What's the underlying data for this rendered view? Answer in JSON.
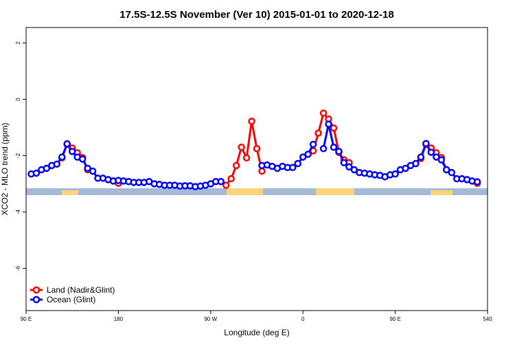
{
  "chart_data": {
    "type": "line",
    "title": "17.5S-12.5S November (Ver 10)   2015-01-01 to 2020-12-18",
    "xlabel": "Longitude (deg E)",
    "ylabel": "XCO2 - MLO trend (ppm)",
    "xlim": [
      90,
      540
    ],
    "xticks": [
      {
        "value": 90,
        "label": "90 E"
      },
      180,
      {
        "value": 270,
        "label": "90 W"
      },
      {
        "value": 360,
        "label": "0"
      },
      {
        "value": 450,
        "label": "90 E"
      },
      540
    ],
    "ylim": [
      -7.5,
      2.55
    ],
    "yticks": [
      -6,
      -4,
      -2,
      0,
      2
    ],
    "legend": "bottom-left",
    "series": [
      {
        "name": "Land (Nadir&Glint)",
        "color": "#ff0000",
        "x": [
          125,
          130,
          135,
          140,
          145,
          150,
          155,
          180,
          185,
          285,
          290,
          295,
          300,
          305,
          310,
          315,
          320,
          325,
          370,
          375,
          380,
          385,
          390,
          395,
          400,
          405,
          410,
          475,
          480,
          485,
          490,
          495,
          500,
          505,
          530
        ],
        "values": [
          -2.08,
          -1.6,
          -1.73,
          -1.9,
          -2.07,
          -2.5,
          null,
          -2.98,
          null,
          -3.05,
          -2.82,
          -2.35,
          -1.7,
          -2.08,
          -0.78,
          -1.75,
          -2.55,
          null,
          -1.83,
          -1.2,
          -0.49,
          -0.7,
          -1.02,
          -1.88,
          -2.15,
          -2.25,
          null,
          -2.1,
          -1.6,
          -1.73,
          -1.9,
          -2.07,
          -2.5,
          null,
          -2.98
        ]
      },
      {
        "name": "Ocean (Glint)",
        "color": "#0000ff",
        "x": [
          95,
          100,
          105,
          110,
          115,
          120,
          125,
          130,
          135,
          140,
          145,
          150,
          155,
          160,
          165,
          170,
          175,
          180,
          185,
          190,
          195,
          200,
          205,
          210,
          215,
          220,
          225,
          230,
          235,
          240,
          245,
          250,
          255,
          260,
          265,
          270,
          275,
          280,
          285,
          290,
          295,
          300,
          305,
          310,
          315,
          320,
          325,
          330,
          335,
          340,
          345,
          350,
          355,
          360,
          365,
          370,
          375,
          380,
          385,
          390,
          395,
          400,
          405,
          410,
          415,
          420,
          425,
          430,
          435,
          440,
          445,
          450,
          455,
          460,
          465,
          470,
          475,
          480,
          485,
          490,
          495,
          500,
          505,
          510,
          515,
          520,
          525,
          530
        ],
        "values": [
          -2.65,
          -2.62,
          -2.5,
          -2.45,
          -2.35,
          -2.3,
          -2.05,
          -1.58,
          -1.85,
          -2.05,
          -2.12,
          -2.45,
          -2.55,
          -2.8,
          -2.8,
          -2.85,
          -2.9,
          -2.88,
          -2.9,
          -2.92,
          -2.95,
          -2.95,
          -2.95,
          -2.92,
          -3.0,
          -3.02,
          -3.05,
          -3.05,
          -3.05,
          -3.08,
          -3.07,
          -3.07,
          -3.1,
          -3.08,
          -3.05,
          -3.0,
          -2.92,
          -2.92,
          null,
          null,
          null,
          null,
          null,
          null,
          null,
          -2.35,
          -2.33,
          -2.38,
          -2.45,
          -2.38,
          -2.42,
          -2.42,
          -2.28,
          -2.05,
          -1.95,
          -1.6,
          null,
          -1.75,
          -0.88,
          -1.7,
          -1.85,
          -2.25,
          -2.4,
          -2.5,
          -2.6,
          -2.62,
          -2.65,
          -2.68,
          -2.7,
          -2.75,
          -2.68,
          -2.65,
          -2.5,
          -2.45,
          -2.35,
          -2.28,
          -2.05,
          -1.57,
          -1.88,
          -2.05,
          -2.15,
          -2.5,
          -2.6,
          -2.82,
          -2.82,
          -2.85,
          -2.9,
          -2.93
        ]
      }
    ]
  }
}
